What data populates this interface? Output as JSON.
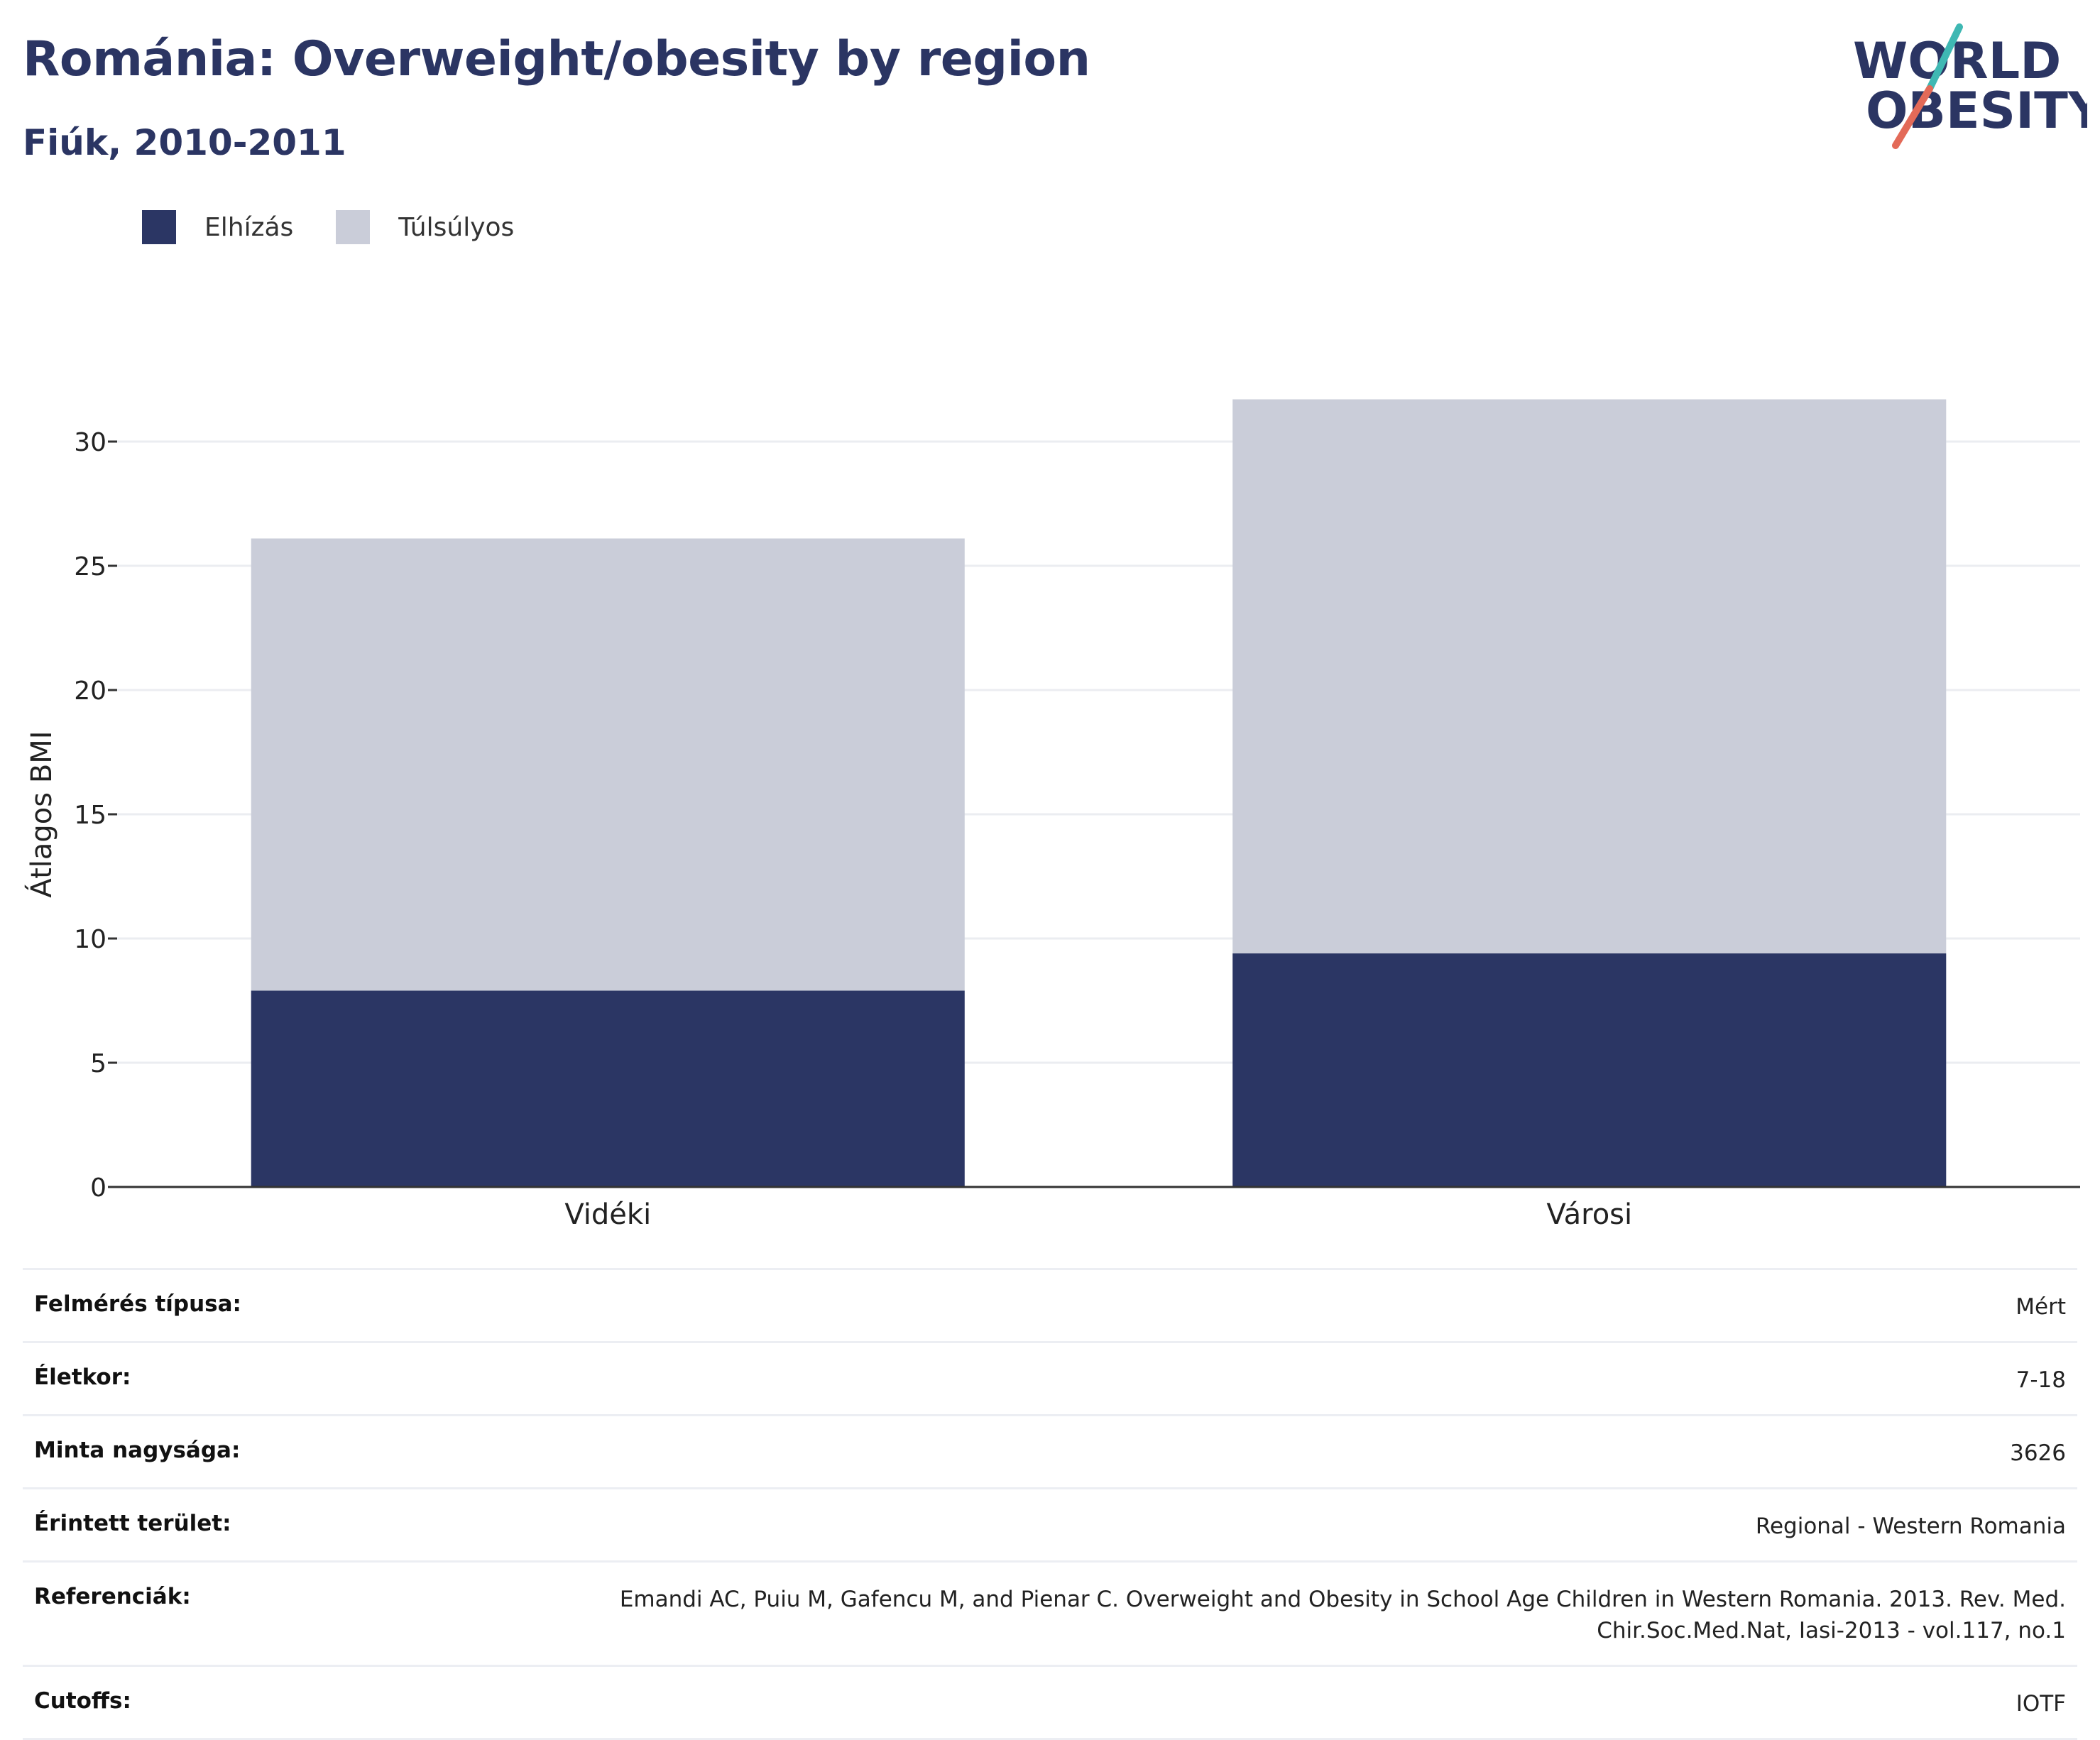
{
  "header": {
    "title": "Románia: Overweight/obesity by region",
    "subtitle": "Fiúk, 2010-2011"
  },
  "logo": {
    "line1": "WORLD",
    "line2": "OBESITY",
    "icon": "world-obesity-logo"
  },
  "legend": [
    {
      "label": "Elhízás",
      "color": "#2b3664"
    },
    {
      "label": "Túlsúlyos",
      "color": "#cacdd9"
    }
  ],
  "chart_data": {
    "type": "bar",
    "stacked": true,
    "categories": [
      "Vidéki",
      "Városi"
    ],
    "series": [
      {
        "name": "Elhízás",
        "color": "#2b3664",
        "values": [
          7.9,
          9.4
        ]
      },
      {
        "name": "Túlsúlyos",
        "color": "#cacdd9",
        "values": [
          18.2,
          22.3
        ]
      }
    ],
    "ylabel": "Átlagos BMI",
    "xlabel": "",
    "ylim": [
      0,
      32
    ],
    "yticks": [
      0,
      5,
      10,
      15,
      20,
      25,
      30
    ],
    "grid": true,
    "legend_position": "top-left"
  },
  "meta": [
    {
      "label": "Felmérés típusa:",
      "value": "Mért"
    },
    {
      "label": "Életkor:",
      "value": "7-18"
    },
    {
      "label": "Minta nagysága:",
      "value": "3626"
    },
    {
      "label": "Érintett terület:",
      "value": "Regional - Western Romania"
    },
    {
      "label": "Referenciák:",
      "value": "Emandi AC, Puiu M, Gafencu M, and Pienar C. Overweight and Obesity in School Age Children in Western Romania. 2013. Rev. Med. Chir.Soc.Med.Nat, Iasi-2013 - vol.117, no.1"
    },
    {
      "label": "Cutoffs:",
      "value": "IOTF"
    }
  ]
}
